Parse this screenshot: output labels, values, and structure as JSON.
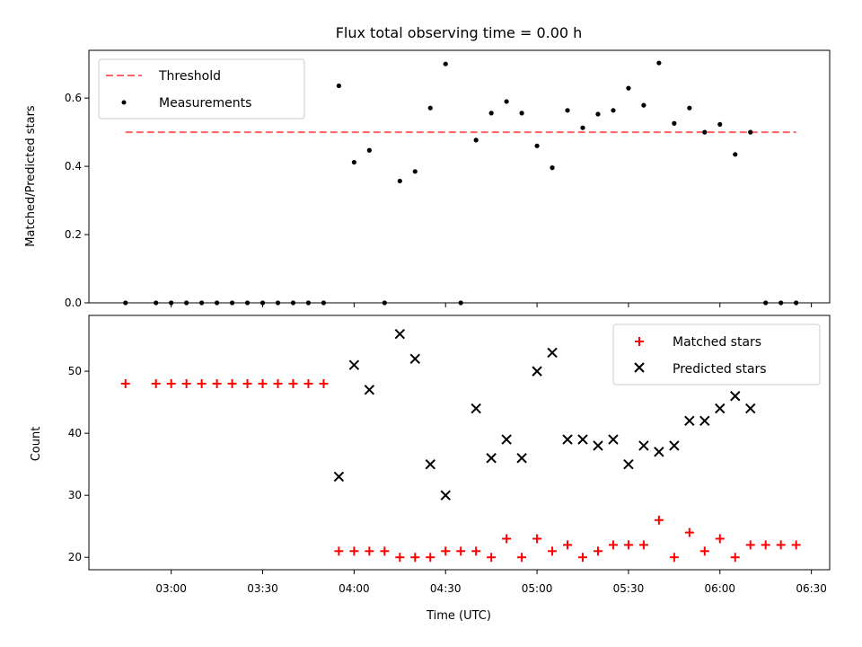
{
  "title": "Flux total observing time = 0.00 h",
  "chart_data": [
    {
      "type": "scatter",
      "ylabel": "Matched/Predicted stars",
      "ylim": [
        0,
        0.74
      ],
      "yticks": [
        0.0,
        0.2,
        0.4,
        0.6
      ],
      "ytick_labels": [
        "0.0",
        "0.2",
        "0.4",
        "0.6"
      ],
      "threshold": {
        "label": "Threshold",
        "value": 0.5,
        "x_start": "02:45",
        "x_end": "06:25",
        "color": "#ff6666"
      },
      "series": [
        {
          "name": "Measurements",
          "marker": "dot",
          "color": "#000000",
          "points": [
            [
              "02:45",
              0.0
            ],
            [
              "02:55",
              0.0
            ],
            [
              "03:00",
              0.0
            ],
            [
              "03:05",
              0.0
            ],
            [
              "03:10",
              0.0
            ],
            [
              "03:15",
              0.0
            ],
            [
              "03:20",
              0.0
            ],
            [
              "03:25",
              0.0
            ],
            [
              "03:30",
              0.0
            ],
            [
              "03:35",
              0.0
            ],
            [
              "03:40",
              0.0
            ],
            [
              "03:45",
              0.0
            ],
            [
              "03:50",
              0.0
            ],
            [
              "03:55",
              0.636
            ],
            [
              "04:00",
              0.412
            ],
            [
              "04:05",
              0.447
            ],
            [
              "04:10",
              0.0
            ],
            [
              "04:15",
              0.357
            ],
            [
              "04:20",
              0.385
            ],
            [
              "04:25",
              0.571
            ],
            [
              "04:30",
              0.7
            ],
            [
              "04:35",
              0.0
            ],
            [
              "04:40",
              0.477
            ],
            [
              "04:45",
              0.556
            ],
            [
              "04:50",
              0.59
            ],
            [
              "04:55",
              0.556
            ],
            [
              "05:00",
              0.46
            ],
            [
              "05:05",
              0.396
            ],
            [
              "05:10",
              0.564
            ],
            [
              "05:15",
              0.513
            ],
            [
              "05:20",
              0.553
            ],
            [
              "05:25",
              0.564
            ],
            [
              "05:30",
              0.629
            ],
            [
              "05:35",
              0.579
            ],
            [
              "05:40",
              0.703
            ],
            [
              "05:45",
              0.526
            ],
            [
              "05:50",
              0.571
            ],
            [
              "05:55",
              0.5
            ],
            [
              "06:00",
              0.523
            ],
            [
              "06:05",
              0.435
            ],
            [
              "06:10",
              0.5
            ],
            [
              "06:15",
              0.0
            ],
            [
              "06:20",
              0.0
            ],
            [
              "06:25",
              0.0
            ]
          ]
        }
      ],
      "legend": {
        "position": "top-left",
        "entries": [
          "Threshold",
          "Measurements"
        ]
      }
    },
    {
      "type": "scatter",
      "xlabel": "Time (UTC)",
      "ylabel": "Count",
      "ylim": [
        18,
        59
      ],
      "yticks": [
        20,
        30,
        40,
        50
      ],
      "ytick_labels": [
        "20",
        "30",
        "40",
        "50"
      ],
      "xlim": [
        "02:33",
        "06:36"
      ],
      "xticks": [
        "03:00",
        "03:30",
        "04:00",
        "04:30",
        "05:00",
        "05:30",
        "06:00",
        "06:30"
      ],
      "series": [
        {
          "name": "Matched stars",
          "marker": "plus",
          "color": "#ff0000",
          "points": [
            [
              "02:45",
              48
            ],
            [
              "02:55",
              48
            ],
            [
              "03:00",
              48
            ],
            [
              "03:05",
              48
            ],
            [
              "03:10",
              48
            ],
            [
              "03:15",
              48
            ],
            [
              "03:20",
              48
            ],
            [
              "03:25",
              48
            ],
            [
              "03:30",
              48
            ],
            [
              "03:35",
              48
            ],
            [
              "03:40",
              48
            ],
            [
              "03:45",
              48
            ],
            [
              "03:50",
              48
            ],
            [
              "03:55",
              21
            ],
            [
              "04:00",
              21
            ],
            [
              "04:05",
              21
            ],
            [
              "04:10",
              21
            ],
            [
              "04:15",
              20
            ],
            [
              "04:20",
              20
            ],
            [
              "04:25",
              20
            ],
            [
              "04:30",
              21
            ],
            [
              "04:35",
              21
            ],
            [
              "04:40",
              21
            ],
            [
              "04:45",
              20
            ],
            [
              "04:50",
              23
            ],
            [
              "04:55",
              20
            ],
            [
              "05:00",
              23
            ],
            [
              "05:05",
              21
            ],
            [
              "05:10",
              22
            ],
            [
              "05:15",
              20
            ],
            [
              "05:20",
              21
            ],
            [
              "05:25",
              22
            ],
            [
              "05:30",
              22
            ],
            [
              "05:35",
              22
            ],
            [
              "05:40",
              26
            ],
            [
              "05:45",
              20
            ],
            [
              "05:50",
              24
            ],
            [
              "05:55",
              21
            ],
            [
              "06:00",
              23
            ],
            [
              "06:05",
              20
            ],
            [
              "06:10",
              22
            ],
            [
              "06:15",
              22
            ],
            [
              "06:20",
              22
            ],
            [
              "06:25",
              22
            ]
          ]
        },
        {
          "name": "Predicted stars",
          "marker": "x",
          "color": "#000000",
          "points": [
            [
              "03:55",
              33
            ],
            [
              "04:00",
              51
            ],
            [
              "04:05",
              47
            ],
            [
              "04:15",
              56
            ],
            [
              "04:20",
              52
            ],
            [
              "04:25",
              35
            ],
            [
              "04:30",
              30
            ],
            [
              "04:40",
              44
            ],
            [
              "04:45",
              36
            ],
            [
              "04:50",
              39
            ],
            [
              "04:55",
              36
            ],
            [
              "05:00",
              50
            ],
            [
              "05:05",
              53
            ],
            [
              "05:10",
              39
            ],
            [
              "05:15",
              39
            ],
            [
              "05:20",
              38
            ],
            [
              "05:25",
              39
            ],
            [
              "05:30",
              35
            ],
            [
              "05:35",
              38
            ],
            [
              "05:40",
              37
            ],
            [
              "05:45",
              38
            ],
            [
              "05:50",
              42
            ],
            [
              "05:55",
              42
            ],
            [
              "06:00",
              44
            ],
            [
              "06:05",
              46
            ],
            [
              "06:10",
              44
            ]
          ]
        }
      ],
      "legend": {
        "position": "top-right",
        "entries": [
          "Matched stars",
          "Predicted stars"
        ]
      }
    }
  ]
}
